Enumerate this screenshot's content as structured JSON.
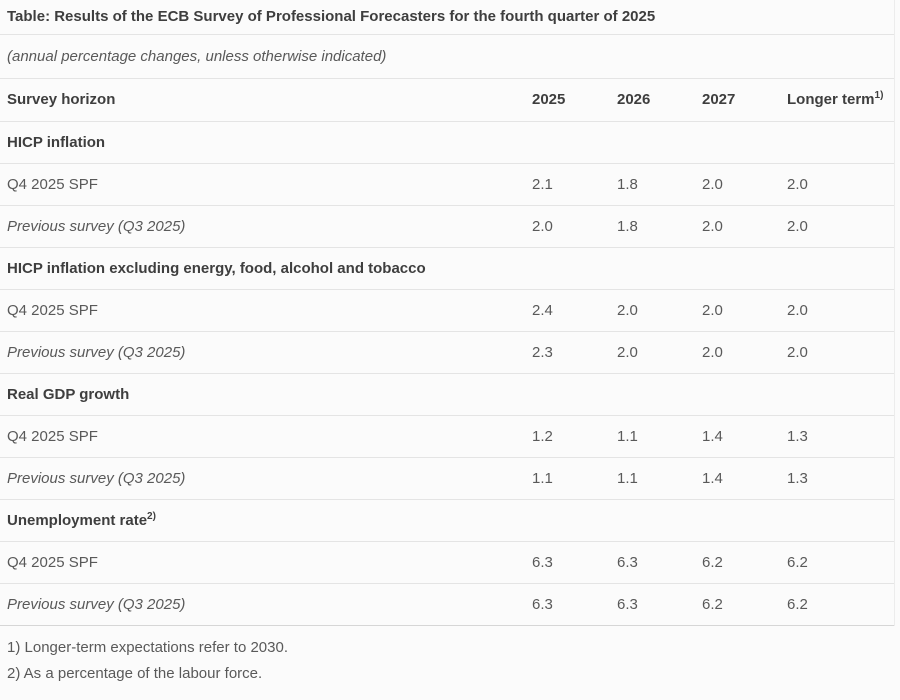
{
  "colors": {
    "page_background": "#fbfbfb",
    "heading_text": "#3e3e3e",
    "body_text": "#595959",
    "row_border": "#e4e4e4",
    "table_bottom_border": "#d6d6d6"
  },
  "page": {
    "title": "Table: Results of the ECB Survey of Professional Forecasters for the fourth quarter of 2025",
    "subtitle": "(annual percentage changes, unless otherwise indicated)"
  },
  "table": {
    "header": {
      "survey_horizon": "Survey horizon",
      "col_2025": "2025",
      "col_2026": "2026",
      "col_2027": "2027",
      "longer_term": "Longer term",
      "longer_term_sup": "1)"
    },
    "sections": [
      {
        "title": "HICP inflation",
        "rows": [
          {
            "label": "Q4 2025 SPF",
            "values": [
              "2.1",
              "1.8",
              "2.0",
              "2.0"
            ]
          },
          {
            "label": "Previous survey (Q3 2025)",
            "values": [
              "2.0",
              "1.8",
              "2.0",
              "2.0"
            ]
          }
        ]
      },
      {
        "title": "HICP inflation excluding energy, food, alcohol and tobacco",
        "rows": [
          {
            "label": "Q4 2025 SPF",
            "values": [
              "2.4",
              "2.0",
              "2.0",
              "2.0"
            ]
          },
          {
            "label": "Previous survey (Q3 2025)",
            "values": [
              "2.3",
              "2.0",
              "2.0",
              "2.0"
            ]
          }
        ]
      },
      {
        "title": "Real GDP growth",
        "rows": [
          {
            "label": "Q4 2025 SPF",
            "values": [
              "1.2",
              "1.1",
              "1.4",
              "1.3"
            ]
          },
          {
            "label": "Previous survey (Q3 2025)",
            "values": [
              "1.1",
              "1.1",
              "1.4",
              "1.3"
            ]
          }
        ]
      },
      {
        "title": "Unemployment rate",
        "title_sup": "2)",
        "rows": [
          {
            "label": "Q4 2025 SPF",
            "values": [
              "6.3",
              "6.3",
              "6.2",
              "6.2"
            ]
          },
          {
            "label": "Previous survey (Q3 2025)",
            "values": [
              "6.3",
              "6.3",
              "6.2",
              "6.2"
            ]
          }
        ]
      }
    ]
  },
  "footnotes": [
    "1) Longer-term expectations refer to 2030.",
    "2) As a percentage of the labour force."
  ]
}
